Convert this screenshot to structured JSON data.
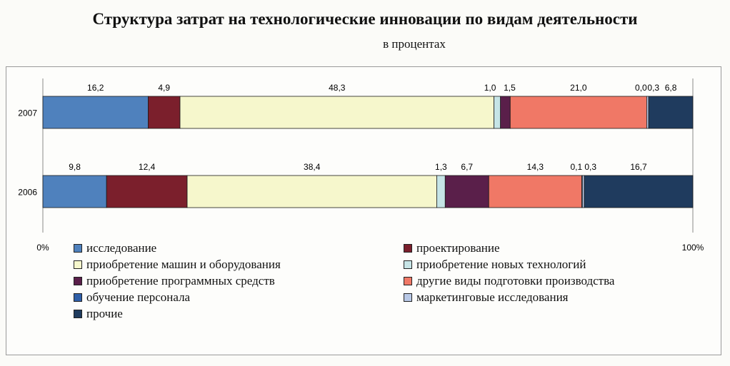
{
  "title": "Структура затрат на технологические инновации по видам деятельности",
  "subtitle": "в процентах",
  "chart_data": {
    "type": "bar",
    "orientation": "horizontal",
    "stacked": "percent",
    "categories": [
      "2007",
      "2006"
    ],
    "series": [
      {
        "name": "исследование",
        "color": "#4f81bd",
        "values": [
          16.2,
          9.8
        ],
        "labels": [
          "16,2",
          "9,8"
        ]
      },
      {
        "name": "проектирование",
        "color": "#7b1f2c",
        "values": [
          4.9,
          12.4
        ],
        "labels": [
          "4,9",
          "12,4"
        ]
      },
      {
        "name": "приобретение машин и оборудования",
        "color": "#f6f7cc",
        "values": [
          48.3,
          38.4
        ],
        "labels": [
          "48,3",
          "38,4"
        ]
      },
      {
        "name": "приобретение новых технологий",
        "color": "#c6e4e6",
        "values": [
          1.0,
          1.3
        ],
        "labels": [
          "1,0",
          "1,3"
        ]
      },
      {
        "name": "приобретение программных средств",
        "color": "#5a1f4a",
        "values": [
          1.5,
          6.7
        ],
        "labels": [
          "1,5",
          "6,7"
        ]
      },
      {
        "name": "другие виды подготовки производства",
        "color": "#f07866",
        "values": [
          21.0,
          14.3
        ],
        "labels": [
          "21,0",
          "14,3"
        ]
      },
      {
        "name": "обучение персонала",
        "color": "#2f5fa8",
        "values": [
          0.0,
          0.1
        ],
        "labels": [
          "0,0",
          "0,1"
        ]
      },
      {
        "name": "маркетинговые исследования",
        "color": "#b8c8e6",
        "values": [
          0.3,
          0.3
        ],
        "labels": [
          "0,3",
          "0,3"
        ]
      },
      {
        "name": "прочие",
        "color": "#1f3b5e",
        "values": [
          6.8,
          16.7
        ],
        "labels": [
          "6,8",
          "16,7"
        ]
      }
    ],
    "xlim": [
      0,
      100
    ],
    "x_tick_labels": [
      "0%",
      "100%"
    ],
    "grid": false,
    "legend_placement": "bottom"
  }
}
